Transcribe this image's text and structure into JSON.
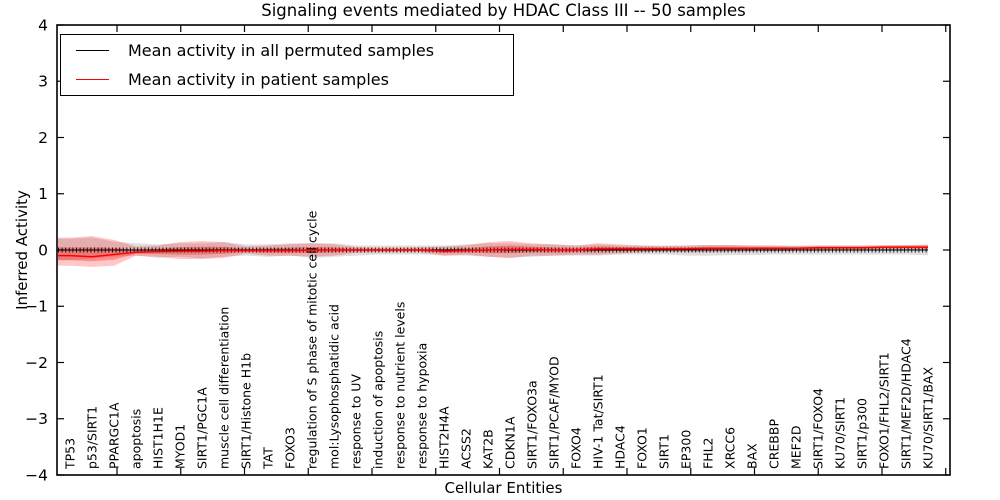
{
  "chart_data": {
    "type": "line",
    "title": "Signaling events mediated by HDAC Class III -- 50 samples",
    "xlabel": "Cellular Entities",
    "ylabel": "Inferred Activity",
    "ylim": [
      -4,
      4
    ],
    "yticks": [
      "4",
      "3",
      "2",
      "1",
      "0",
      "−1",
      "−2",
      "−3",
      "−4"
    ],
    "grid": false,
    "legend": {
      "position": "upper-left",
      "entries": [
        {
          "label": "Mean activity in all permuted samples",
          "color": "#000000"
        },
        {
          "label": "Mean activity in patient samples",
          "color": "#ff0000"
        }
      ]
    },
    "categories": [
      "TP53",
      "p53/SIRT1",
      "PPARGC1A",
      "apoptosis",
      "HIST1H1E",
      "MYOD1",
      "SIRT1/PGC1A",
      "muscle cell differentiation",
      "SIRT1/Histone H1b",
      "TAT",
      "FOXO3",
      "regulation of S phase of mitotic cell cycle",
      "mol:Lysophosphatidic acid",
      "response to UV",
      "induction of apoptosis",
      "response to nutrient levels",
      "response to hypoxia",
      "HIST2H4A",
      "ACSS2",
      "KAT2B",
      "CDKN1A",
      "SIRT1/FOXO3a",
      "SIRT1/PCAF/MYOD",
      "FOXO4",
      "HIV-1 Tat/SIRT1",
      "HDAC4",
      "FOXO1",
      "SIRT1",
      "EP300",
      "FHL2",
      "XRCC6",
      "BAX",
      "CREBBP",
      "MEF2D",
      "SIRT1/FOXO4",
      "KU70/SIRT1",
      "SIRT1/p300",
      "FOXO1/FHL2/SIRT1",
      "SIRT1/MEF2D/HDAC4",
      "KU70/SIRT1/BAX"
    ],
    "series": [
      {
        "name": "permuted_mean",
        "values": [
          0,
          0,
          0,
          0,
          0,
          0,
          0,
          0,
          0,
          0,
          0,
          0,
          0,
          0,
          0,
          0,
          0,
          0,
          0,
          0,
          0,
          0,
          0,
          0,
          0,
          0,
          0,
          0,
          0,
          0,
          0,
          0,
          0,
          0,
          0,
          0,
          0,
          0,
          0,
          0
        ]
      },
      {
        "name": "patient_mean",
        "values": [
          -0.1,
          -0.12,
          -0.08,
          -0.04,
          -0.03,
          -0.02,
          -0.02,
          -0.01,
          -0.01,
          -0.01,
          -0.01,
          0.0,
          0.0,
          0.0,
          0.0,
          0.0,
          0.0,
          -0.02,
          -0.01,
          0.0,
          0.01,
          0.01,
          0.0,
          0.0,
          0.02,
          0.02,
          0.02,
          0.02,
          0.02,
          0.03,
          0.03,
          0.03,
          0.03,
          0.03,
          0.04,
          0.04,
          0.04,
          0.05,
          0.05,
          0.05
        ]
      }
    ],
    "bands": [
      {
        "name": "permuted_std",
        "upper": [
          0.2,
          0.22,
          0.15,
          0.12,
          0.1,
          0.12,
          0.12,
          0.14,
          0.1,
          0.1,
          0.12,
          0.12,
          0.12,
          0.08,
          0.08,
          0.08,
          0.08,
          0.08,
          0.1,
          0.12,
          0.12,
          0.1,
          0.1,
          0.08,
          0.1,
          0.08,
          0.08,
          0.08,
          0.08,
          0.09,
          0.09,
          0.08,
          0.08,
          0.08,
          0.08,
          0.08,
          0.08,
          0.08,
          0.09,
          0.09
        ],
        "lower": [
          -0.18,
          -0.15,
          -0.12,
          -0.1,
          -0.14,
          -0.12,
          -0.15,
          -0.12,
          -0.1,
          -0.12,
          -0.1,
          -0.14,
          -0.12,
          -0.1,
          -0.08,
          -0.08,
          -0.08,
          -0.1,
          -0.1,
          -0.12,
          -0.14,
          -0.12,
          -0.1,
          -0.1,
          -0.1,
          -0.08,
          -0.08,
          -0.08,
          -0.1,
          -0.1,
          -0.09,
          -0.09,
          -0.08,
          -0.08,
          -0.08,
          -0.08,
          -0.08,
          -0.08,
          -0.08,
          -0.09
        ]
      },
      {
        "name": "patient_std",
        "upper": [
          0.22,
          0.25,
          0.18,
          0.06,
          0.08,
          0.14,
          0.16,
          0.14,
          0.06,
          0.08,
          0.1,
          0.12,
          0.1,
          0.05,
          0.04,
          0.04,
          0.05,
          0.06,
          0.08,
          0.14,
          0.16,
          0.12,
          0.1,
          0.08,
          0.12,
          0.1,
          0.08,
          0.07,
          0.08,
          0.09,
          0.09,
          0.08,
          0.08,
          0.07,
          0.08,
          0.08,
          0.08,
          0.09,
          0.09,
          0.1
        ],
        "lower": [
          -0.28,
          -0.3,
          -0.28,
          -0.1,
          -0.12,
          -0.16,
          -0.16,
          -0.14,
          -0.06,
          -0.1,
          -0.1,
          -0.12,
          -0.1,
          -0.05,
          -0.04,
          -0.04,
          -0.04,
          -0.1,
          -0.08,
          -0.12,
          -0.14,
          -0.1,
          -0.1,
          -0.08,
          -0.08,
          -0.06,
          -0.04,
          -0.03,
          -0.04,
          -0.04,
          -0.03,
          -0.02,
          -0.02,
          -0.01,
          -0.01,
          0.0,
          0.0,
          0.01,
          0.01,
          0.0
        ]
      }
    ],
    "colors": {
      "permuted_line": "#000000",
      "patient_line": "#ff0000",
      "permuted_band": "rgba(0,0,0,0.13)",
      "patient_band_outer": "rgba(255,0,0,0.22)",
      "patient_band_inner": "rgba(255,0,0,0.30)",
      "frame": "#000000"
    }
  }
}
